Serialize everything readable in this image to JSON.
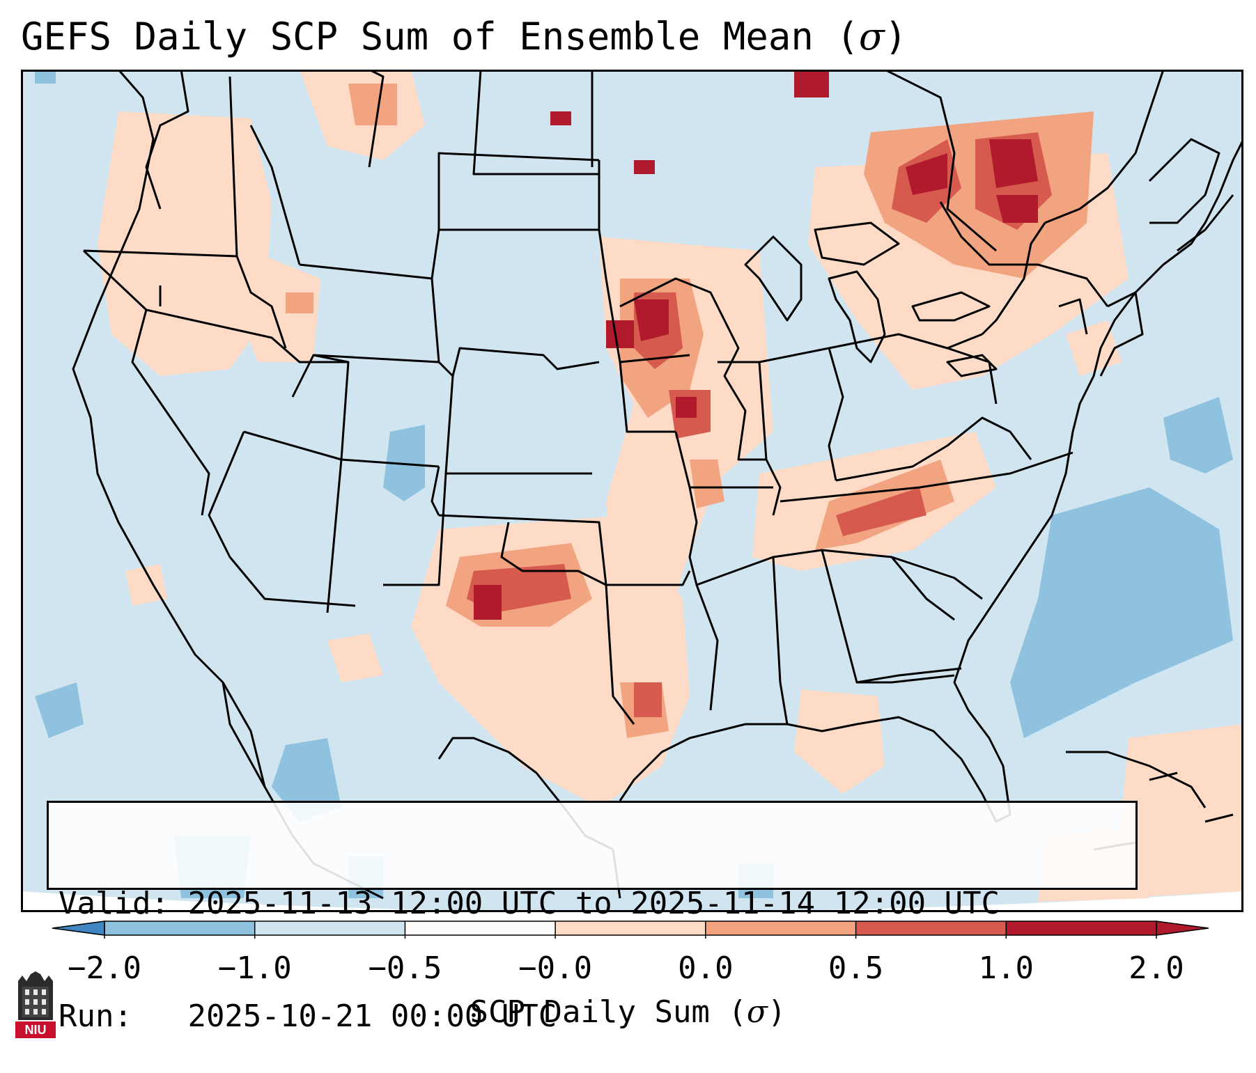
{
  "title": {
    "text": "GEFS Daily SCP Sum of Ensemble Mean (",
    "symbol": "σ",
    "close": ")"
  },
  "info": {
    "valid_label": "Valid:",
    "valid_value": "2025-11-13 12:00 UTC to 2025-11-14 12:00 UTC",
    "run_label": "Run:",
    "run_value": "2025-10-21 00:00 UTC"
  },
  "colorbar": {
    "label_text": "SCP Daily Sum (",
    "label_symbol": "σ",
    "label_close": ")",
    "ticks": [
      "−2.0",
      "−1.0",
      "−0.5",
      "−0.0",
      "0.0",
      "0.5",
      "1.0",
      "2.0"
    ],
    "colors": [
      "#3f86c2",
      "#8ec2df",
      "#d1e5f0",
      "#fdfbf9",
      "#fddbc7",
      "#f2a37f",
      "#d65a4e",
      "#b11a2c"
    ],
    "extend": "both"
  },
  "logo": {
    "text": "NIU"
  },
  "map": {
    "region": "Continental United States",
    "ocean_color": "#d1e5f0",
    "colors": {
      "neutral": "#d1e5f0",
      "low": "#fddbc7",
      "mid": "#f2a37f",
      "high": "#d65a4e",
      "extreme": "#b11a2c",
      "neg": "#8ec2df"
    }
  }
}
